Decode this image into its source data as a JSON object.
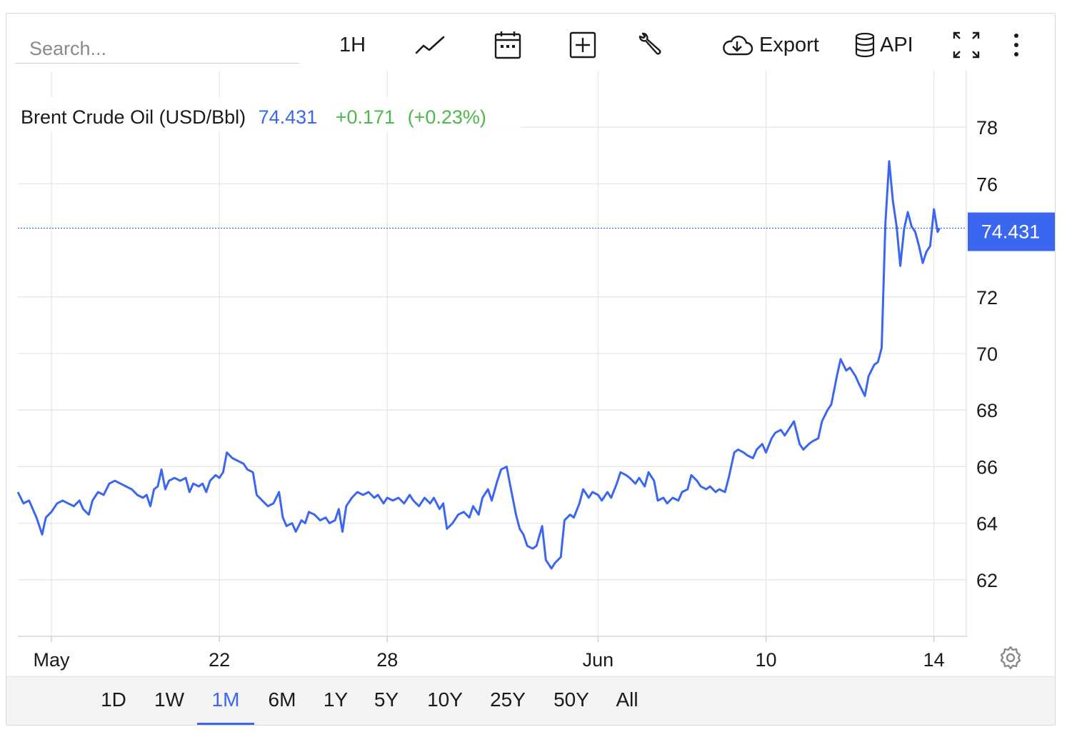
{
  "toolbar": {
    "search_placeholder": "Search...",
    "interval_label": "1H",
    "export_label": "Export",
    "api_label": "API",
    "icons": [
      "line-chart-icon",
      "calendar-icon",
      "add-compare-icon",
      "wrench-icon",
      "cloud-download-icon",
      "database-icon",
      "fullscreen-icon",
      "more-vertical-icon"
    ]
  },
  "legend": {
    "name": "Brent Crude Oil (USD/Bbl)",
    "last": "74.431",
    "change": "+0.171",
    "change_pct": "(+0.23%)"
  },
  "last_price_tag": "74.431",
  "colors": {
    "line": "#3b67f0",
    "positive": "#4cb84c",
    "grid": "#e6e6e6",
    "tag_bg": "#3b67f0"
  },
  "ranges": [
    "1D",
    "1W",
    "1M",
    "6M",
    "1Y",
    "5Y",
    "10Y",
    "25Y",
    "50Y",
    "All"
  ],
  "active_range": "1M",
  "chart_data": {
    "type": "line",
    "title": "Brent Crude Oil (USD/Bbl)",
    "xlabel": "",
    "ylabel": "",
    "ylim": [
      60,
      80
    ],
    "yticks": [
      62,
      64,
      66,
      68,
      70,
      72,
      76,
      78
    ],
    "xticks": [
      {
        "label": "May",
        "x": 0.0
      },
      {
        "label": "22",
        "x": 9.0
      },
      {
        "label": "28",
        "x": 18.0
      },
      {
        "label": "Jun",
        "x": 29.3
      },
      {
        "label": "10",
        "x": 38.3
      },
      {
        "label": "14",
        "x": 47.3
      }
    ],
    "xlim": [
      -1.8,
      48.5
    ],
    "grid": true,
    "last_value": 74.431,
    "series": [
      {
        "name": "Brent Crude Oil (USD/Bbl)",
        "points": [
          [
            -1.8,
            65.1
          ],
          [
            -1.5,
            64.7
          ],
          [
            -1.2,
            64.8
          ],
          [
            -1.0,
            64.5
          ],
          [
            -0.8,
            64.2
          ],
          [
            -0.5,
            63.6
          ],
          [
            -0.3,
            64.2
          ],
          [
            0.0,
            64.4
          ],
          [
            0.3,
            64.7
          ],
          [
            0.6,
            64.8
          ],
          [
            0.9,
            64.7
          ],
          [
            1.2,
            64.6
          ],
          [
            1.5,
            64.8
          ],
          [
            1.7,
            64.5
          ],
          [
            2.0,
            64.3
          ],
          [
            2.2,
            64.8
          ],
          [
            2.5,
            65.1
          ],
          [
            2.8,
            65.0
          ],
          [
            3.1,
            65.4
          ],
          [
            3.4,
            65.5
          ],
          [
            3.7,
            65.4
          ],
          [
            4.0,
            65.3
          ],
          [
            4.3,
            65.2
          ],
          [
            4.6,
            65.0
          ],
          [
            4.9,
            64.9
          ],
          [
            5.1,
            65.0
          ],
          [
            5.3,
            64.6
          ],
          [
            5.5,
            65.2
          ],
          [
            5.7,
            65.3
          ],
          [
            5.9,
            65.9
          ],
          [
            6.1,
            65.2
          ],
          [
            6.3,
            65.5
          ],
          [
            6.6,
            65.6
          ],
          [
            6.9,
            65.5
          ],
          [
            7.2,
            65.6
          ],
          [
            7.4,
            65.1
          ],
          [
            7.6,
            65.4
          ],
          [
            7.9,
            65.3
          ],
          [
            8.1,
            65.4
          ],
          [
            8.3,
            65.1
          ],
          [
            8.5,
            65.5
          ],
          [
            8.8,
            65.7
          ],
          [
            9.0,
            65.6
          ],
          [
            9.2,
            65.8
          ],
          [
            9.4,
            66.5
          ],
          [
            9.7,
            66.3
          ],
          [
            10.0,
            66.2
          ],
          [
            10.3,
            66.1
          ],
          [
            10.5,
            65.9
          ],
          [
            10.8,
            65.8
          ],
          [
            11.0,
            65.0
          ],
          [
            11.3,
            64.8
          ],
          [
            11.6,
            64.6
          ],
          [
            11.9,
            64.7
          ],
          [
            12.2,
            65.1
          ],
          [
            12.4,
            64.2
          ],
          [
            12.6,
            63.9
          ],
          [
            12.9,
            64.0
          ],
          [
            13.1,
            63.7
          ],
          [
            13.4,
            64.1
          ],
          [
            13.6,
            64.0
          ],
          [
            13.8,
            64.4
          ],
          [
            14.1,
            64.3
          ],
          [
            14.4,
            64.1
          ],
          [
            14.7,
            64.2
          ],
          [
            14.9,
            64.0
          ],
          [
            15.2,
            64.1
          ],
          [
            15.4,
            64.5
          ],
          [
            15.6,
            63.7
          ],
          [
            15.8,
            64.6
          ],
          [
            16.1,
            64.9
          ],
          [
            16.4,
            65.1
          ],
          [
            16.7,
            65.0
          ],
          [
            17.0,
            65.1
          ],
          [
            17.3,
            64.9
          ],
          [
            17.5,
            65.0
          ],
          [
            17.8,
            64.7
          ],
          [
            18.0,
            64.9
          ],
          [
            18.3,
            64.8
          ],
          [
            18.6,
            64.9
          ],
          [
            18.9,
            64.7
          ],
          [
            19.2,
            65.0
          ],
          [
            19.4,
            64.8
          ],
          [
            19.7,
            64.6
          ],
          [
            20.0,
            64.9
          ],
          [
            20.3,
            64.7
          ],
          [
            20.5,
            64.9
          ],
          [
            20.8,
            64.5
          ],
          [
            21.0,
            64.7
          ],
          [
            21.2,
            63.8
          ],
          [
            21.5,
            64.0
          ],
          [
            21.8,
            64.3
          ],
          [
            22.1,
            64.4
          ],
          [
            22.4,
            64.2
          ],
          [
            22.6,
            64.6
          ],
          [
            22.9,
            64.3
          ],
          [
            23.1,
            64.9
          ],
          [
            23.4,
            65.2
          ],
          [
            23.6,
            64.8
          ],
          [
            23.9,
            65.5
          ],
          [
            24.1,
            65.9
          ],
          [
            24.4,
            66.0
          ],
          [
            24.6,
            65.3
          ],
          [
            24.9,
            64.3
          ],
          [
            25.1,
            63.8
          ],
          [
            25.3,
            63.6
          ],
          [
            25.5,
            63.2
          ],
          [
            25.8,
            63.1
          ],
          [
            26.0,
            63.2
          ],
          [
            26.3,
            63.9
          ],
          [
            26.5,
            62.7
          ],
          [
            26.8,
            62.4
          ],
          [
            27.0,
            62.6
          ],
          [
            27.3,
            62.8
          ],
          [
            27.5,
            64.1
          ],
          [
            27.8,
            64.3
          ],
          [
            28.0,
            64.2
          ],
          [
            28.3,
            64.7
          ],
          [
            28.5,
            65.2
          ],
          [
            28.8,
            64.9
          ],
          [
            29.0,
            65.1
          ],
          [
            29.3,
            65.0
          ],
          [
            29.5,
            64.8
          ],
          [
            29.8,
            65.1
          ],
          [
            30.0,
            64.9
          ],
          [
            30.3,
            65.4
          ],
          [
            30.5,
            65.8
          ],
          [
            30.8,
            65.7
          ],
          [
            31.0,
            65.6
          ],
          [
            31.3,
            65.4
          ],
          [
            31.5,
            65.6
          ],
          [
            31.8,
            65.3
          ],
          [
            32.0,
            65.8
          ],
          [
            32.3,
            65.5
          ],
          [
            32.5,
            64.8
          ],
          [
            32.8,
            64.9
          ],
          [
            33.0,
            64.7
          ],
          [
            33.3,
            64.9
          ],
          [
            33.6,
            64.8
          ],
          [
            33.8,
            65.1
          ],
          [
            34.1,
            65.2
          ],
          [
            34.3,
            65.7
          ],
          [
            34.6,
            65.5
          ],
          [
            34.8,
            65.3
          ],
          [
            35.1,
            65.2
          ],
          [
            35.3,
            65.3
          ],
          [
            35.6,
            65.1
          ],
          [
            35.8,
            65.2
          ],
          [
            36.1,
            65.1
          ],
          [
            36.3,
            65.6
          ],
          [
            36.6,
            66.5
          ],
          [
            36.8,
            66.6
          ],
          [
            37.1,
            66.5
          ],
          [
            37.3,
            66.4
          ],
          [
            37.6,
            66.3
          ],
          [
            37.8,
            66.6
          ],
          [
            38.1,
            66.8
          ],
          [
            38.3,
            66.5
          ],
          [
            38.6,
            67.0
          ],
          [
            38.8,
            67.2
          ],
          [
            39.1,
            67.3
          ],
          [
            39.3,
            67.1
          ],
          [
            39.6,
            67.4
          ],
          [
            39.8,
            67.6
          ],
          [
            40.1,
            66.8
          ],
          [
            40.3,
            66.6
          ],
          [
            40.6,
            66.8
          ],
          [
            40.8,
            66.9
          ],
          [
            41.1,
            67.0
          ],
          [
            41.3,
            67.6
          ],
          [
            41.6,
            68.0
          ],
          [
            41.8,
            68.2
          ],
          [
            42.1,
            69.2
          ],
          [
            42.3,
            69.8
          ],
          [
            42.6,
            69.4
          ],
          [
            42.8,
            69.5
          ],
          [
            43.1,
            69.2
          ],
          [
            43.3,
            68.9
          ],
          [
            43.6,
            68.5
          ],
          [
            43.8,
            69.2
          ],
          [
            44.1,
            69.6
          ],
          [
            44.3,
            69.7
          ],
          [
            44.5,
            70.2
          ],
          [
            44.7,
            74.6
          ],
          [
            44.9,
            76.8
          ],
          [
            45.1,
            75.4
          ],
          [
            45.3,
            74.5
          ],
          [
            45.5,
            73.1
          ],
          [
            45.7,
            74.4
          ],
          [
            45.9,
            75.0
          ],
          [
            46.1,
            74.5
          ],
          [
            46.3,
            74.3
          ],
          [
            46.5,
            73.8
          ],
          [
            46.7,
            73.2
          ],
          [
            46.9,
            73.6
          ],
          [
            47.1,
            73.8
          ],
          [
            47.3,
            75.1
          ],
          [
            47.5,
            74.3
          ],
          [
            47.6,
            74.431
          ]
        ]
      }
    ]
  }
}
